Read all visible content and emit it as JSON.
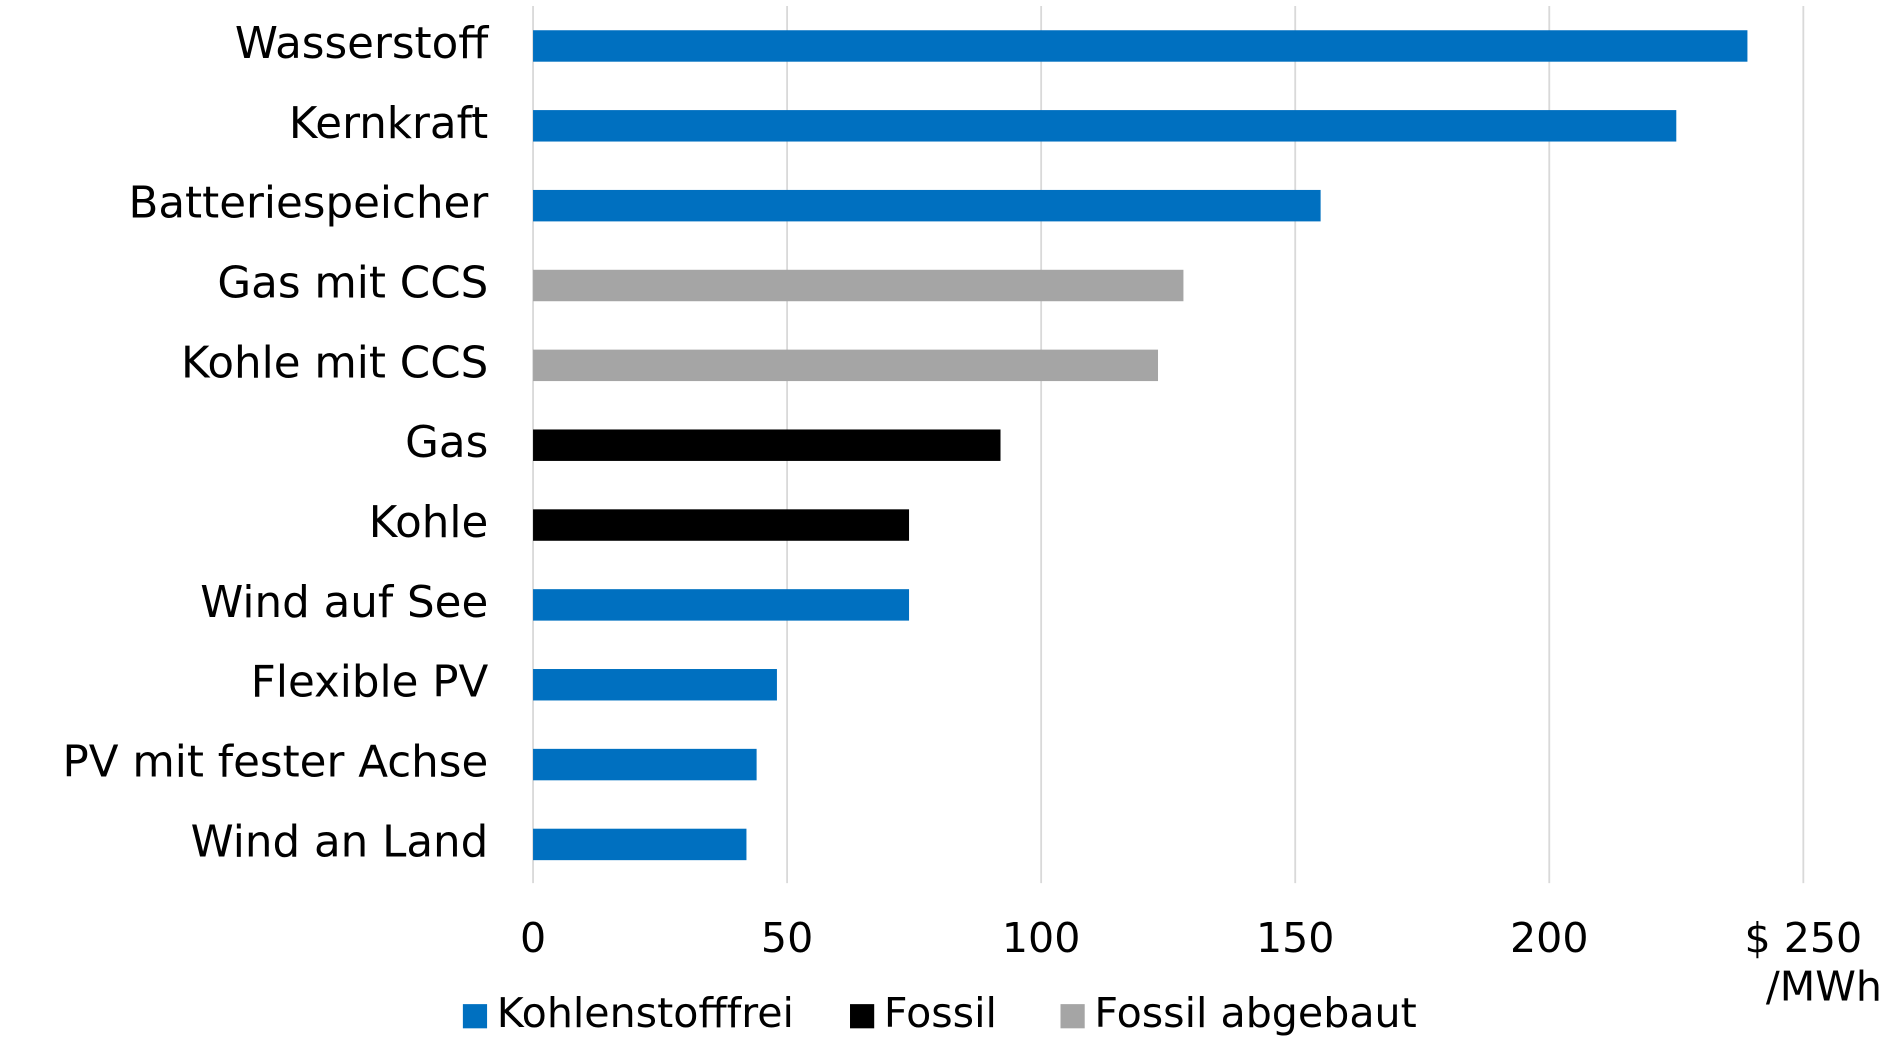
{
  "chart_data": {
    "type": "barh",
    "categories": [
      "Wasserstoff",
      "Kernkraft",
      "Batteriespeicher",
      "Gas mit CCS",
      "Kohle mit CCS",
      "Gas",
      "Kohle",
      "Wind auf See",
      "Flexible PV",
      "PV mit fester Achse",
      "Wind an Land"
    ],
    "series": [
      {
        "name": "Kohlenstofffrei",
        "color": "#0070c0",
        "values": [
          239,
          225,
          155,
          null,
          null,
          null,
          null,
          74,
          48,
          44,
          42
        ]
      },
      {
        "name": "Fossil",
        "color": "#000000",
        "values": [
          null,
          null,
          null,
          null,
          null,
          92,
          74,
          null,
          null,
          null,
          null
        ]
      },
      {
        "name": "Fossil abgebaut",
        "color": "#a5a5a5",
        "values": [
          null,
          null,
          null,
          128,
          123,
          null,
          null,
          null,
          null,
          null,
          null
        ]
      }
    ],
    "xlim": [
      0,
      250
    ],
    "xticks": [
      0,
      50,
      100,
      150,
      200,
      {
        "value": 250,
        "label": "$ 250"
      }
    ],
    "xlabel": "/MWh",
    "grid": true,
    "legend": "bottom"
  }
}
